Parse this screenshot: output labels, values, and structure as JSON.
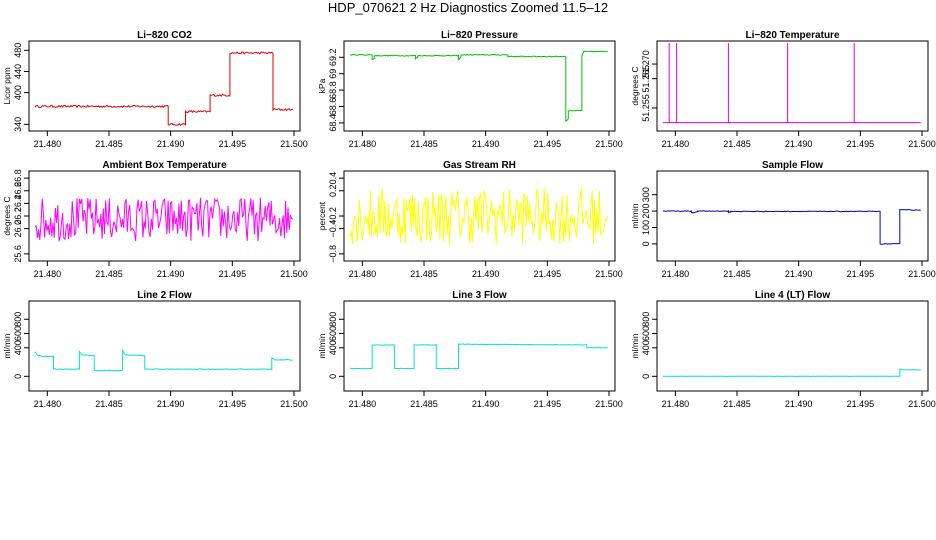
{
  "title": "HDP_070621  2 Hz Diagnostics Zoomed 11.5–12",
  "chart_data": [
    {
      "id": "co2",
      "type": "line",
      "title": "Li−820 CO2",
      "xlabel": "",
      "ylabel": "Licor ppm",
      "color": "#e00000",
      "xlim": [
        21.479,
        21.5
      ],
      "ylim": [
        335,
        490
      ],
      "xticks": [
        21.48,
        21.485,
        21.49,
        21.495,
        21.5
      ],
      "xticklabels": [
        "21.480",
        "21.485",
        "21.490",
        "21.495",
        "21.500"
      ],
      "yticks": [
        340,
        400,
        440,
        480
      ],
      "yticklabels": [
        "340",
        "400",
        "440",
        "480"
      ],
      "x": [
        21.479,
        21.4898,
        21.4898,
        21.4912,
        21.4912,
        21.4932,
        21.4932,
        21.4948,
        21.4948,
        21.4983,
        21.4983,
        21.4999
      ],
      "y": [
        374,
        374,
        340,
        340,
        364,
        364,
        395,
        395,
        475,
        475,
        368,
        368
      ],
      "noise": 2
    },
    {
      "id": "pressure",
      "type": "line",
      "title": "Li−820 Pressure",
      "xlabel": "",
      "ylabel": "kPa",
      "color": "#00c000",
      "xlim": [
        21.479,
        21.5
      ],
      "ylim": [
        68.35,
        69.35
      ],
      "xticks": [
        21.48,
        21.485,
        21.49,
        21.495,
        21.5
      ],
      "xticklabels": [
        "21.480",
        "21.485",
        "21.490",
        "21.495",
        "21.500"
      ],
      "yticks": [
        68.4,
        68.6,
        68.8,
        69.0,
        69.2
      ],
      "yticklabels": [
        "68.4",
        "68.6",
        "68.8",
        "69",
        "69.2"
      ],
      "x": [
        21.479,
        21.4808,
        21.4808,
        21.481,
        21.481,
        21.4843,
        21.4843,
        21.4845,
        21.4845,
        21.4878,
        21.4878,
        21.488,
        21.488,
        21.4918,
        21.4918,
        21.4965,
        21.4965,
        21.4967,
        21.4967,
        21.4978,
        21.4978,
        21.498,
        21.498,
        21.4999
      ],
      "y": [
        69.23,
        69.23,
        69.17,
        69.19,
        69.22,
        69.22,
        69.18,
        69.2,
        69.22,
        69.22,
        69.17,
        69.2,
        69.23,
        69.23,
        69.21,
        69.21,
        68.42,
        68.45,
        68.55,
        68.55,
        69.22,
        69.28,
        69.27,
        69.27
      ],
      "noise": 0.005
    },
    {
      "id": "temperature",
      "type": "line",
      "title": "Li−820 Temperature",
      "xlabel": "",
      "ylabel": "degrees C",
      "color": "#e000e0",
      "xlim": [
        21.479,
        21.5
      ],
      "ylim": [
        51.2485,
        51.2765
      ],
      "xticks": [
        21.48,
        21.485,
        21.49,
        21.495,
        21.5
      ],
      "xticklabels": [
        "21.480",
        "21.485",
        "21.490",
        "21.495",
        "21.500"
      ],
      "yticks": [
        51.255,
        51.265,
        51.27
      ],
      "yticklabels": [
        "51.255",
        "51.265",
        "51.270"
      ],
      "x": [
        21.479,
        21.4795,
        21.4795,
        21.4795,
        21.4801,
        21.4801,
        21.4801,
        21.4801,
        21.4801,
        21.4801,
        21.4843,
        21.4843,
        21.4843,
        21.4843,
        21.4843,
        21.4843,
        21.4891,
        21.4891,
        21.4891,
        21.4945,
        21.4945,
        21.4945,
        21.4999
      ],
      "y": [
        51.25,
        51.25,
        51.28,
        51.25,
        51.25,
        51.28,
        51.25,
        51.25,
        51.27,
        51.25,
        51.25,
        51.28,
        51.25,
        51.25,
        51.262,
        51.25,
        51.25,
        51.28,
        51.25,
        51.25,
        51.28,
        51.25,
        51.25
      ],
      "noise": 0
    },
    {
      "id": "ambient",
      "type": "line",
      "title": "Ambient Box Temperature",
      "xlabel": "",
      "ylabel": "degrees C",
      "color": "#ff00ff",
      "xlim": [
        21.479,
        21.5
      ],
      "ylim": [
        25.55,
        26.85
      ],
      "xticks": [
        21.48,
        21.485,
        21.49,
        21.495,
        21.5
      ],
      "xticklabels": [
        "21.480",
        "21.485",
        "21.490",
        "21.495",
        "21.500"
      ],
      "yticks": [
        25.6,
        26.0,
        26.2,
        26.4,
        26.6,
        26.8
      ],
      "yticklabels": [
        "25.6",
        "26.0",
        "26.2",
        "26.4",
        "26.6",
        "26.8"
      ],
      "x": [
        21.479,
        21.4999
      ],
      "y": [
        26.15,
        26.15
      ],
      "noise": 0.35
    },
    {
      "id": "rh",
      "type": "line",
      "title": "Gas Stream RH",
      "xlabel": "",
      "ylabel": "percent",
      "color": "#ffff00",
      "xlim": [
        21.479,
        21.5
      ],
      "ylim": [
        -0.85,
        0.45
      ],
      "xticks": [
        21.48,
        21.485,
        21.49,
        21.495,
        21.5
      ],
      "xticklabels": [
        "21.480",
        "21.485",
        "21.490",
        "21.495",
        "21.500"
      ],
      "yticks": [
        -0.8,
        -0.4,
        -0.2,
        0.2,
        0.4
      ],
      "yticklabels": [
        "−0.8",
        "−0.4",
        "−0.2",
        "0.2",
        "0.4"
      ],
      "x": [
        21.479,
        21.4999
      ],
      "y": [
        -0.2,
        -0.2
      ],
      "noise": 0.45
    },
    {
      "id": "sample",
      "type": "line",
      "title": "Sample Flow",
      "xlabel": "",
      "ylabel": "ml/min",
      "color": "#0000c0",
      "xlim": [
        21.479,
        21.5
      ],
      "ylim": [
        -80,
        420
      ],
      "xticks": [
        21.48,
        21.485,
        21.49,
        21.495,
        21.5
      ],
      "xticklabels": [
        "21.480",
        "21.485",
        "21.490",
        "21.495",
        "21.500"
      ],
      "yticks": [
        0,
        100,
        200,
        300
      ],
      "yticklabels": [
        "0",
        "100",
        "200",
        "300"
      ],
      "x": [
        21.479,
        21.4813,
        21.4813,
        21.4818,
        21.4818,
        21.4843,
        21.4843,
        21.4845,
        21.4845,
        21.4966,
        21.4966,
        21.4982,
        21.4982,
        21.4999
      ],
      "y": [
        200,
        200,
        190,
        195,
        200,
        200,
        190,
        195,
        198,
        198,
        0,
        0,
        210,
        205
      ],
      "noise": 2
    },
    {
      "id": "line2",
      "type": "line",
      "title": "Line 2 Flow",
      "xlabel": "",
      "ylabel": "ml/min",
      "color": "#00e0e0",
      "xlim": [
        21.479,
        21.5
      ],
      "ylim": [
        -150,
        1000
      ],
      "xticks": [
        21.48,
        21.485,
        21.49,
        21.495,
        21.5
      ],
      "xticklabels": [
        "21.480",
        "21.485",
        "21.490",
        "21.495",
        "21.500"
      ],
      "yticks": [
        0,
        400,
        600,
        800
      ],
      "yticklabels": [
        "0",
        "400",
        "600",
        "800"
      ],
      "x": [
        21.479,
        21.4792,
        21.4796,
        21.4805,
        21.4805,
        21.4826,
        21.4826,
        21.4828,
        21.4838,
        21.4838,
        21.4861,
        21.4861,
        21.4863,
        21.4879,
        21.4879,
        21.4982,
        21.4982,
        21.4985,
        21.4999
      ],
      "y": [
        340,
        300,
        280,
        280,
        100,
        100,
        350,
        300,
        290,
        80,
        80,
        360,
        300,
        290,
        100,
        100,
        260,
        230,
        230
      ],
      "noise": 5
    },
    {
      "id": "line3",
      "type": "line",
      "title": "Line 3 Flow",
      "xlabel": "",
      "ylabel": "ml/min",
      "color": "#00e0e0",
      "xlim": [
        21.479,
        21.5
      ],
      "ylim": [
        -150,
        1000
      ],
      "xticks": [
        21.48,
        21.485,
        21.49,
        21.495,
        21.5
      ],
      "xticklabels": [
        "21.480",
        "21.485",
        "21.490",
        "21.495",
        "21.500"
      ],
      "yticks": [
        0,
        400,
        600,
        800
      ],
      "yticklabels": [
        "0",
        "400",
        "600",
        "800"
      ],
      "x": [
        21.479,
        21.4808,
        21.4808,
        21.4826,
        21.4826,
        21.4842,
        21.4842,
        21.486,
        21.486,
        21.4878,
        21.4878,
        21.4982,
        21.4982,
        21.4999
      ],
      "y": [
        110,
        110,
        440,
        440,
        110,
        110,
        440,
        440,
        110,
        110,
        450,
        440,
        400,
        400
      ],
      "noise": 3
    },
    {
      "id": "line4",
      "type": "line",
      "title": "Line 4 (LT) Flow",
      "xlabel": "",
      "ylabel": "ml/min",
      "color": "#00e0e0",
      "xlim": [
        21.479,
        21.5
      ],
      "ylim": [
        -150,
        1000
      ],
      "xticks": [
        21.48,
        21.485,
        21.49,
        21.495,
        21.5
      ],
      "xticklabels": [
        "21.480",
        "21.485",
        "21.490",
        "21.495",
        "21.500"
      ],
      "yticks": [
        0,
        400,
        600,
        800
      ],
      "yticklabels": [
        "0",
        "400",
        "600",
        "800"
      ],
      "x": [
        21.479,
        21.4982,
        21.4982,
        21.4985,
        21.4999
      ],
      "y": [
        0,
        0,
        100,
        90,
        90
      ],
      "noise": 1
    }
  ]
}
